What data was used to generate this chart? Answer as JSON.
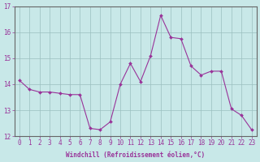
{
  "xlabel": "Windchill (Refroidissement éolien,°C)",
  "xlim": [
    -0.5,
    23.5
  ],
  "ylim": [
    12,
    17
  ],
  "yticks": [
    12,
    13,
    14,
    15,
    16,
    17
  ],
  "xticks": [
    0,
    1,
    2,
    3,
    4,
    5,
    6,
    7,
    8,
    9,
    10,
    11,
    12,
    13,
    14,
    15,
    16,
    17,
    18,
    19,
    20,
    21,
    22,
    23
  ],
  "bg_color": "#c8e8e8",
  "line_color": "#993399",
  "x": [
    0,
    1,
    2,
    3,
    4,
    5,
    6,
    7,
    8,
    9,
    10,
    11,
    12,
    13,
    14,
    15,
    16,
    17,
    18,
    19,
    20,
    21,
    22,
    23
  ],
  "y": [
    14.15,
    13.8,
    13.7,
    13.7,
    13.65,
    13.6,
    13.6,
    12.3,
    12.25,
    12.55,
    14.0,
    14.8,
    14.1,
    15.1,
    16.65,
    15.8,
    15.75,
    14.7,
    14.35,
    14.5,
    14.5,
    13.05,
    12.8,
    12.25
  ]
}
